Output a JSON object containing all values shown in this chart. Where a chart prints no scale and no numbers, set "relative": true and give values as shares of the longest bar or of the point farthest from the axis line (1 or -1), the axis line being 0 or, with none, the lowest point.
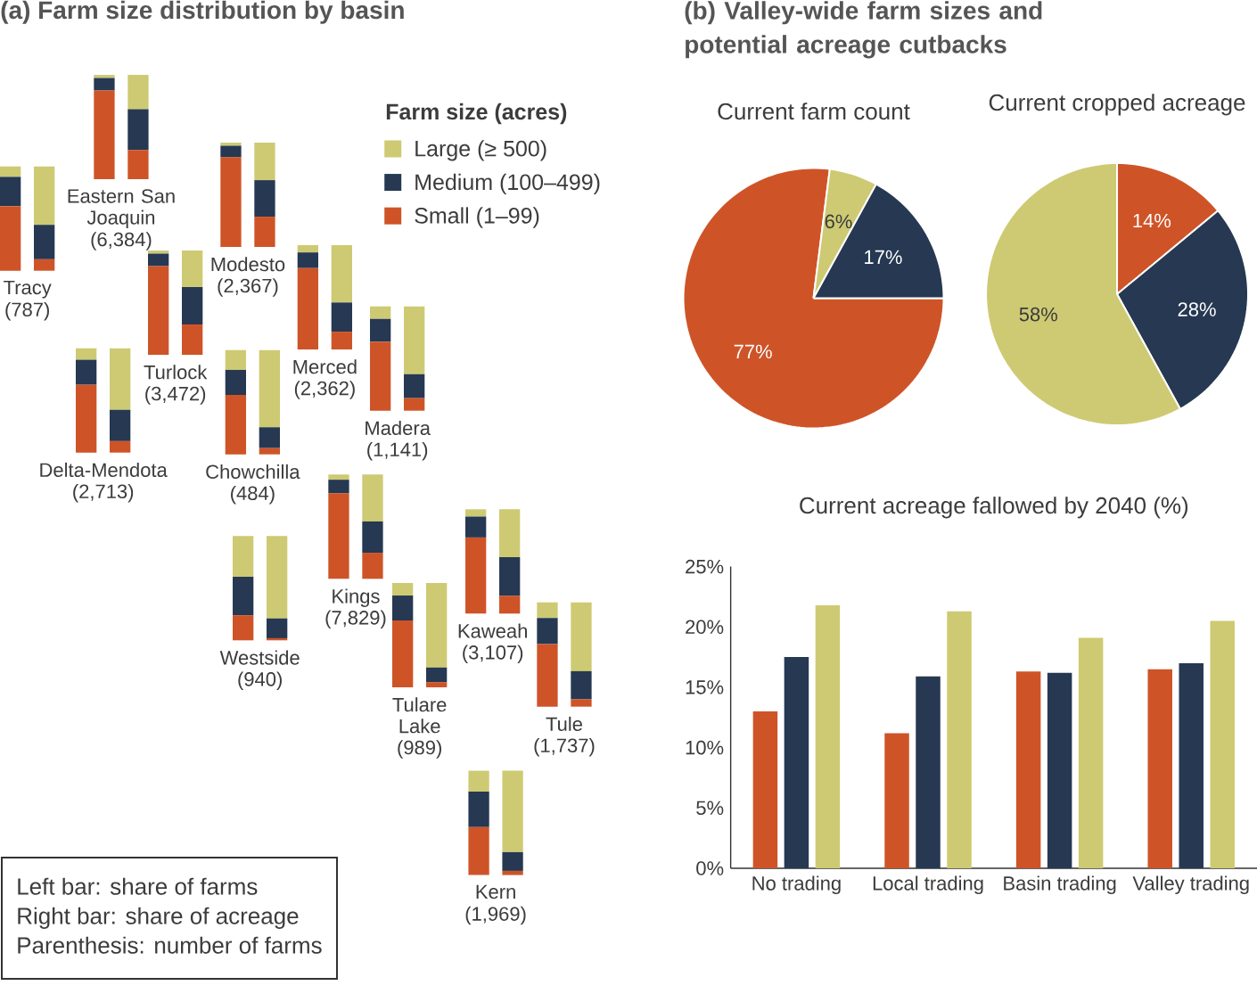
{
  "chart_data": [
    {
      "type": "bar",
      "stacked": true,
      "relative": true,
      "title": "(a) Farm size distribution by basin",
      "legend": "right",
      "legend_title": "Farm size (acres)",
      "categories": [
        null,
        null
      ],
      "series": [
        {
          "name": "Small (1–99)",
          "color": "#ce5428",
          "values": [
            0.62,
            0.11
          ]
        },
        {
          "name": "Medium (100–499)",
          "color": "#263852",
          "values": [
            0.28,
            0.33
          ]
        },
        {
          "name": "Large (≥ 500)",
          "color": "#cdca73",
          "values": [
            0.1,
            0.56
          ]
        }
      ],
      "xlabel": "Tracy",
      "annotations": [
        "(787)"
      ]
    },
    {
      "type": "bar",
      "stacked": true,
      "relative": true,
      "categories": [
        null,
        null
      ],
      "series": [
        {
          "color": "#ce5428",
          "values": [
            0.85,
            0.28
          ]
        },
        {
          "color": "#263852",
          "values": [
            0.12,
            0.39
          ]
        },
        {
          "color": "#cdca73",
          "values": [
            0.03,
            0.33
          ]
        }
      ],
      "xlabel": "Eastern San Joaquin",
      "annotations": [
        "(6,384)"
      ]
    },
    {
      "type": "bar",
      "stacked": true,
      "relative": true,
      "categories": [
        null,
        null
      ],
      "series": [
        {
          "color": "#ce5428",
          "values": [
            0.86,
            0.29
          ]
        },
        {
          "color": "#263852",
          "values": [
            0.11,
            0.35
          ]
        },
        {
          "color": "#cdca73",
          "values": [
            0.03,
            0.36
          ]
        }
      ],
      "xlabel": "Modesto",
      "annotations": [
        "(2,367)"
      ]
    },
    {
      "type": "bar",
      "stacked": true,
      "relative": true,
      "categories": [
        null,
        null
      ],
      "series": [
        {
          "color": "#ce5428",
          "values": [
            0.85,
            0.29
          ]
        },
        {
          "color": "#263852",
          "values": [
            0.12,
            0.36
          ]
        },
        {
          "color": "#cdca73",
          "values": [
            0.03,
            0.35
          ]
        }
      ],
      "xlabel": "Turlock",
      "annotations": [
        "(3,472)"
      ]
    },
    {
      "type": "bar",
      "stacked": true,
      "relative": true,
      "categories": [
        null,
        null
      ],
      "series": [
        {
          "color": "#ce5428",
          "values": [
            0.78,
            0.17
          ]
        },
        {
          "color": "#263852",
          "values": [
            0.15,
            0.28
          ]
        },
        {
          "color": "#cdca73",
          "values": [
            0.07,
            0.55
          ]
        }
      ],
      "xlabel": "Merced",
      "annotations": [
        "(2,362)"
      ]
    },
    {
      "type": "bar",
      "stacked": true,
      "relative": true,
      "categories": [
        null,
        null
      ],
      "series": [
        {
          "color": "#ce5428",
          "values": [
            0.66,
            0.12
          ]
        },
        {
          "color": "#263852",
          "values": [
            0.22,
            0.23
          ]
        },
        {
          "color": "#cdca73",
          "values": [
            0.12,
            0.65
          ]
        }
      ],
      "xlabel": "Madera",
      "annotations": [
        "(1,141)"
      ]
    },
    {
      "type": "bar",
      "stacked": true,
      "relative": true,
      "categories": [
        null,
        null
      ],
      "series": [
        {
          "color": "#ce5428",
          "values": [
            0.65,
            0.11
          ]
        },
        {
          "color": "#263852",
          "values": [
            0.24,
            0.3
          ]
        },
        {
          "color": "#cdca73",
          "values": [
            0.11,
            0.59
          ]
        }
      ],
      "xlabel": "Delta-Mendota",
      "annotations": [
        "(2,713)"
      ]
    },
    {
      "type": "bar",
      "stacked": true,
      "relative": true,
      "categories": [
        null,
        null
      ],
      "series": [
        {
          "color": "#ce5428",
          "values": [
            0.57,
            0.06
          ]
        },
        {
          "color": "#263852",
          "values": [
            0.24,
            0.2
          ]
        },
        {
          "color": "#cdca73",
          "values": [
            0.19,
            0.74
          ]
        }
      ],
      "xlabel": "Chowchilla",
      "annotations": [
        "(484)"
      ]
    },
    {
      "type": "bar",
      "stacked": true,
      "relative": true,
      "categories": [
        null,
        null
      ],
      "series": [
        {
          "color": "#ce5428",
          "values": [
            0.82,
            0.25
          ]
        },
        {
          "color": "#263852",
          "values": [
            0.13,
            0.3
          ]
        },
        {
          "color": "#cdca73",
          "values": [
            0.05,
            0.45
          ]
        }
      ],
      "xlabel": "Kings",
      "annotations": [
        "(7,829)"
      ]
    },
    {
      "type": "bar",
      "stacked": true,
      "relative": true,
      "categories": [
        null,
        null
      ],
      "series": [
        {
          "color": "#ce5428",
          "values": [
            0.24,
            0.02
          ]
        },
        {
          "color": "#263852",
          "values": [
            0.37,
            0.19
          ]
        },
        {
          "color": "#cdca73",
          "values": [
            0.39,
            0.79
          ]
        }
      ],
      "xlabel": "Westside",
      "annotations": [
        "(940)"
      ]
    },
    {
      "type": "bar",
      "stacked": true,
      "relative": true,
      "categories": [
        null,
        null
      ],
      "series": [
        {
          "color": "#ce5428",
          "values": [
            0.73,
            0.17
          ]
        },
        {
          "color": "#263852",
          "values": [
            0.2,
            0.37
          ]
        },
        {
          "color": "#cdca73",
          "values": [
            0.07,
            0.46
          ]
        }
      ],
      "xlabel": "Kaweah",
      "annotations": [
        "(3,107)"
      ]
    },
    {
      "type": "bar",
      "stacked": true,
      "relative": true,
      "categories": [
        null,
        null
      ],
      "series": [
        {
          "color": "#ce5428",
          "values": [
            0.64,
            0.05
          ]
        },
        {
          "color": "#263852",
          "values": [
            0.24,
            0.14
          ]
        },
        {
          "color": "#cdca73",
          "values": [
            0.12,
            0.81
          ]
        }
      ],
      "xlabel": "Tulare Lake",
      "annotations": [
        "(989)"
      ]
    },
    {
      "type": "bar",
      "stacked": true,
      "relative": true,
      "categories": [
        null,
        null
      ],
      "series": [
        {
          "color": "#ce5428",
          "values": [
            0.6,
            0.07
          ]
        },
        {
          "color": "#263852",
          "values": [
            0.25,
            0.27
          ]
        },
        {
          "color": "#cdca73",
          "values": [
            0.15,
            0.66
          ]
        }
      ],
      "xlabel": "Tule",
      "annotations": [
        "(1,737)"
      ]
    },
    {
      "type": "bar",
      "stacked": true,
      "relative": true,
      "categories": [
        null,
        null
      ],
      "series": [
        {
          "color": "#ce5428",
          "values": [
            0.46,
            0.04
          ]
        },
        {
          "color": "#263852",
          "values": [
            0.34,
            0.18
          ]
        },
        {
          "color": "#cdca73",
          "values": [
            0.2,
            0.78
          ]
        }
      ],
      "xlabel": "Kern",
      "annotations": [
        "(1,969)"
      ]
    },
    {
      "type": "pie",
      "title": "(b) Valley-wide farm sizes and potential acreage cutbacks",
      "subtitle": "Current farm count",
      "categories": [
        null,
        null,
        null
      ],
      "values": [
        77,
        6,
        17
      ],
      "colors": [
        "#ce5428",
        "#cdca73",
        "#263852"
      ],
      "value_labels": [
        "77%",
        "6%",
        "17%"
      ]
    },
    {
      "type": "pie",
      "title": "Current cropped acreage",
      "categories": [
        null,
        null,
        null
      ],
      "values": [
        14,
        28,
        58
      ],
      "colors": [
        "#ce5428",
        "#263852",
        "#cdca73"
      ],
      "value_labels": [
        "14%",
        "28%",
        "58%"
      ]
    },
    {
      "type": "bar",
      "title": "Current acreage fallowed by 2040 (%)",
      "categories": [
        "No trading",
        "Local trading",
        "Basin trading",
        "Valley trading"
      ],
      "series": [
        {
          "color": "#ce5428",
          "values": [
            13.0,
            11.2,
            16.3,
            16.5
          ]
        },
        {
          "color": "#263852",
          "values": [
            17.5,
            15.9,
            16.2,
            17.0
          ]
        },
        {
          "color": "#cdca73",
          "values": [
            21.8,
            21.3,
            19.1,
            20.5
          ]
        }
      ],
      "ylim": [
        0,
        25
      ],
      "yticks": [
        {
          "value": 0,
          "label": "0%"
        },
        {
          "value": 5,
          "label": "5%"
        },
        {
          "value": 10,
          "label": "10%"
        },
        {
          "value": 15,
          "label": "15%"
        },
        {
          "value": 20,
          "label": "20%"
        },
        {
          "value": 25,
          "label": "25%"
        }
      ]
    },
    {
      "type": "other",
      "annotations": [
        "Left bar: share of farms",
        "Right bar: share of acreage",
        "Parenthesis: number of farms"
      ]
    }
  ]
}
